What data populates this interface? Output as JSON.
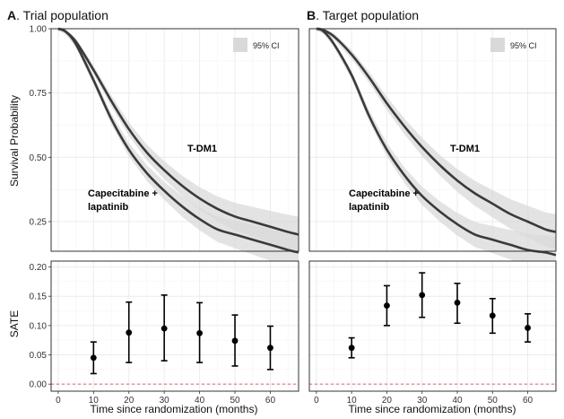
{
  "chart_data": [
    {
      "type": "line",
      "panel_letter": "A",
      "title": "Trial population",
      "xlabel": "",
      "ylabel": "Survival Probability",
      "xlim": [
        -2,
        68
      ],
      "ylim": [
        0.135,
        1.0
      ],
      "yticks": [
        "1.00",
        "0.75",
        "0.50",
        "0.25"
      ],
      "grid": true,
      "legend": {
        "label": "95% CI",
        "placement": "top-right"
      },
      "series": [
        {
          "name": "T-DM1",
          "x": [
            0,
            2,
            5,
            10,
            15,
            20,
            25,
            30,
            35,
            40,
            45,
            50,
            55,
            60,
            65,
            68
          ],
          "y": [
            1.0,
            0.99,
            0.95,
            0.84,
            0.72,
            0.61,
            0.52,
            0.45,
            0.39,
            0.34,
            0.3,
            0.27,
            0.25,
            0.23,
            0.21,
            0.2
          ]
        },
        {
          "name": "Capecitabine + lapatinib",
          "x": [
            0,
            2,
            5,
            10,
            15,
            20,
            25,
            30,
            35,
            40,
            45,
            50,
            55,
            60,
            65,
            68
          ],
          "y": [
            1.0,
            0.99,
            0.94,
            0.8,
            0.65,
            0.53,
            0.44,
            0.37,
            0.31,
            0.26,
            0.22,
            0.2,
            0.18,
            0.16,
            0.14,
            0.13
          ]
        }
      ]
    },
    {
      "type": "line",
      "panel_letter": "B",
      "title": "Target population",
      "xlabel": "",
      "ylabel": "",
      "xlim": [
        -2,
        68
      ],
      "ylim": [
        0.135,
        1.0
      ],
      "yticks": [],
      "grid": true,
      "legend": {
        "label": "95% CI",
        "placement": "top-right"
      },
      "series": [
        {
          "name": "T-DM1",
          "x": [
            0,
            2,
            5,
            10,
            15,
            20,
            25,
            30,
            35,
            40,
            45,
            50,
            55,
            60,
            65,
            68
          ],
          "y": [
            1.0,
            0.995,
            0.97,
            0.9,
            0.81,
            0.71,
            0.62,
            0.54,
            0.47,
            0.41,
            0.36,
            0.32,
            0.28,
            0.25,
            0.22,
            0.21
          ]
        },
        {
          "name": "Capecitabine + lapatinib",
          "x": [
            0,
            2,
            5,
            10,
            15,
            20,
            25,
            30,
            35,
            40,
            45,
            50,
            55,
            60,
            65,
            68
          ],
          "y": [
            1.0,
            0.99,
            0.94,
            0.82,
            0.66,
            0.53,
            0.43,
            0.35,
            0.29,
            0.24,
            0.2,
            0.18,
            0.16,
            0.14,
            0.13,
            0.12
          ]
        }
      ]
    },
    {
      "type": "scatter",
      "panel_letter": "",
      "title": "",
      "xlabel": "Time since randomization (months)",
      "ylabel": "SATE",
      "xlim": [
        -2,
        68
      ],
      "ylim": [
        -0.012,
        0.21
      ],
      "xticks": [
        "0",
        "10",
        "20",
        "30",
        "40",
        "50",
        "60"
      ],
      "yticks": [
        "0.20",
        "0.15",
        "0.10",
        "0.05",
        "0.00"
      ],
      "grid": true,
      "reference_line": 0,
      "points": [
        {
          "x": 10,
          "y": 0.045,
          "lo": 0.018,
          "hi": 0.072
        },
        {
          "x": 20,
          "y": 0.088,
          "lo": 0.037,
          "hi": 0.14
        },
        {
          "x": 30,
          "y": 0.095,
          "lo": 0.04,
          "hi": 0.152
        },
        {
          "x": 40,
          "y": 0.087,
          "lo": 0.037,
          "hi": 0.139
        },
        {
          "x": 50,
          "y": 0.074,
          "lo": 0.031,
          "hi": 0.118
        },
        {
          "x": 60,
          "y": 0.062,
          "lo": 0.025,
          "hi": 0.099
        }
      ]
    },
    {
      "type": "scatter",
      "panel_letter": "",
      "title": "",
      "xlabel": "Time since randomization (months)",
      "ylabel": "",
      "xlim": [
        -2,
        68
      ],
      "ylim": [
        -0.012,
        0.21
      ],
      "xticks": [
        "0",
        "10",
        "20",
        "30",
        "40",
        "50",
        "60"
      ],
      "yticks": [],
      "grid": true,
      "reference_line": 0,
      "points": [
        {
          "x": 10,
          "y": 0.062,
          "lo": 0.045,
          "hi": 0.079
        },
        {
          "x": 20,
          "y": 0.134,
          "lo": 0.1,
          "hi": 0.168
        },
        {
          "x": 30,
          "y": 0.152,
          "lo": 0.114,
          "hi": 0.19
        },
        {
          "x": 40,
          "y": 0.139,
          "lo": 0.104,
          "hi": 0.172
        },
        {
          "x": 50,
          "y": 0.117,
          "lo": 0.087,
          "hi": 0.146
        },
        {
          "x": 60,
          "y": 0.096,
          "lo": 0.072,
          "hi": 0.12
        }
      ]
    }
  ],
  "colors": {
    "curve": "#3a3a3a",
    "ci_band": "#d9d9d9",
    "grid": "#ebebeb",
    "panel_border": "#333333",
    "reference_line": "#e06060",
    "point": "#000000"
  }
}
